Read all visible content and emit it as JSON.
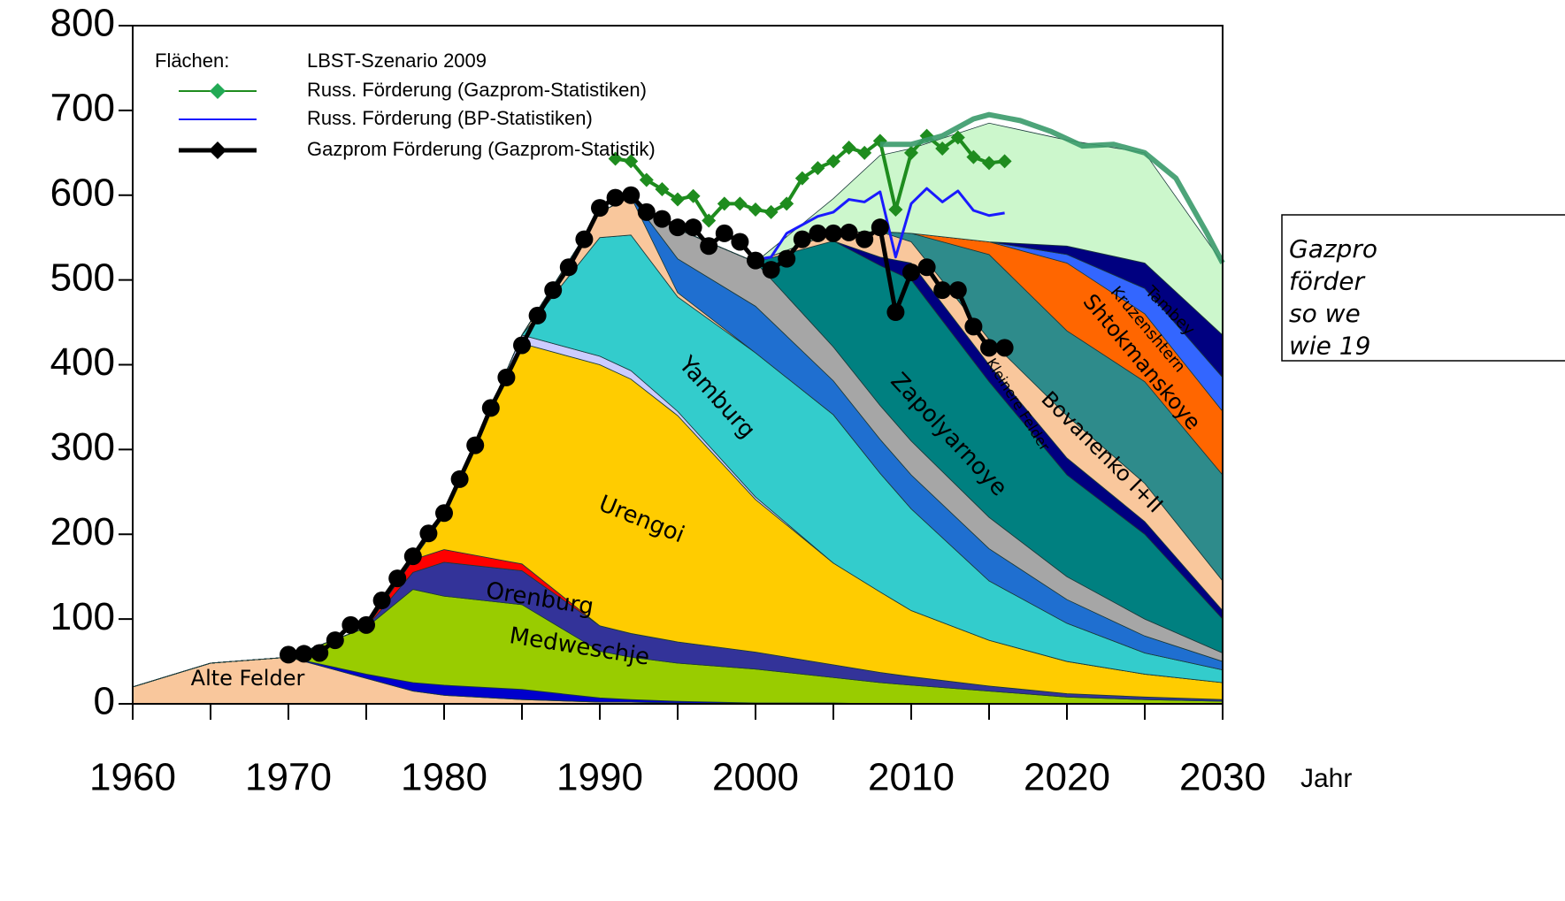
{
  "chart_data": {
    "type": "stacked-area",
    "x_label": "Jahr",
    "xlim": [
      1960,
      2030
    ],
    "ylim": [
      0,
      800
    ],
    "xticks": [
      1960,
      1970,
      1980,
      1990,
      2000,
      2010,
      2020,
      2030
    ],
    "xminor_ticks": [
      1965,
      1975,
      1985,
      1995,
      2005,
      2015,
      2025
    ],
    "yticks": [
      0,
      100,
      200,
      300,
      400,
      500,
      600,
      700,
      800
    ],
    "legend": {
      "areas_label": "Flächen:",
      "areas_name": "LBST-Szenario 2009",
      "corner": "upper left"
    },
    "annotation": [
      "Gazpro",
      "förder",
      " so we",
      "wie 19"
    ],
    "x": [
      1960,
      1965,
      1970,
      1975,
      1978,
      1980,
      1985,
      1990,
      1992,
      1995,
      2000,
      2005,
      2008,
      2010,
      2015,
      2020,
      2025,
      2030
    ],
    "series": [
      {
        "name": "Alte Felder",
        "color": "#f9c79c",
        "values": [
          20,
          48,
          55,
          30,
          15,
          10,
          5,
          2,
          2,
          1,
          0,
          0,
          0,
          0,
          0,
          0,
          0,
          0
        ]
      },
      {
        "color": "#0000cc",
        "values": [
          0,
          0,
          0,
          5,
          10,
          12,
          12,
          5,
          3,
          2,
          1,
          1,
          0,
          0,
          0,
          0,
          0,
          0
        ]
      },
      {
        "name": "Medweschje",
        "color": "#99cc00",
        "values": [
          0,
          0,
          0,
          55,
          110,
          105,
          100,
          55,
          50,
          45,
          40,
          30,
          25,
          22,
          15,
          8,
          5,
          3
        ]
      },
      {
        "name": "Orenburg",
        "color": "#333399",
        "values": [
          0,
          0,
          0,
          0,
          20,
          40,
          40,
          30,
          28,
          25,
          20,
          15,
          12,
          10,
          6,
          4,
          3,
          2
        ]
      },
      {
        "color": "#ff0000",
        "values": [
          0,
          0,
          0,
          0,
          15,
          15,
          8,
          0,
          0,
          0,
          0,
          0,
          0,
          0,
          0,
          0,
          0,
          0
        ]
      },
      {
        "name": "Urengoi",
        "color": "#ffcc00",
        "values": [
          0,
          0,
          0,
          0,
          0,
          40,
          260,
          308,
          300,
          267,
          180,
          120,
          95,
          78,
          54,
          38,
          27,
          20
        ]
      },
      {
        "color": "#ccccff",
        "values": [
          0,
          0,
          0,
          0,
          0,
          0,
          10,
          10,
          10,
          5,
          3,
          0,
          0,
          0,
          0,
          0,
          0,
          0
        ]
      },
      {
        "name": "Yamburg",
        "color": "#33cccc",
        "values": [
          0,
          0,
          0,
          0,
          0,
          0,
          0,
          140,
          160,
          135,
          170,
          175,
          140,
          120,
          70,
          45,
          25,
          15
        ]
      },
      {
        "color": "#f9c79c",
        "values": [
          0,
          0,
          0,
          0,
          0,
          0,
          0,
          30,
          45,
          5,
          0,
          0,
          0,
          0,
          0,
          0,
          0,
          0
        ]
      },
      {
        "color": "#1f6fd0",
        "values": [
          0,
          0,
          0,
          0,
          0,
          0,
          0,
          0,
          0,
          40,
          55,
          40,
          40,
          40,
          38,
          28,
          20,
          10
        ]
      },
      {
        "color": "#a6a6a6",
        "values": [
          0,
          0,
          0,
          0,
          0,
          0,
          0,
          0,
          0,
          35,
          52,
          40,
          40,
          40,
          37,
          27,
          20,
          10
        ]
      },
      {
        "name": "Zapolyarnoye",
        "color": "#008080",
        "values": [
          0,
          0,
          0,
          0,
          0,
          0,
          0,
          0,
          0,
          0,
          0,
          125,
          165,
          190,
          160,
          120,
          100,
          40
        ]
      },
      {
        "color": "#000080",
        "values": [
          0,
          0,
          0,
          0,
          0,
          0,
          0,
          0,
          0,
          0,
          0,
          0,
          10,
          20,
          20,
          20,
          15,
          10
        ]
      },
      {
        "name": "Kleinere Felder",
        "color": "#f9c79c",
        "values": [
          0,
          0,
          0,
          0,
          0,
          0,
          0,
          0,
          0,
          0,
          0,
          10,
          30,
          25,
          30,
          50,
          45,
          35
        ]
      },
      {
        "name": "Bovanenko I+II",
        "color": "#2e8b8b",
        "values": [
          0,
          0,
          0,
          0,
          0,
          0,
          0,
          0,
          0,
          0,
          0,
          0,
          0,
          10,
          100,
          100,
          120,
          125
        ]
      },
      {
        "name": "Shtokmanskoye",
        "color": "#ff6600",
        "values": [
          0,
          0,
          0,
          0,
          0,
          0,
          0,
          0,
          0,
          0,
          0,
          0,
          0,
          0,
          15,
          80,
          80,
          75
        ]
      },
      {
        "name": "Kruzenshtern",
        "color": "#3366ff",
        "values": [
          0,
          0,
          0,
          0,
          0,
          0,
          0,
          0,
          0,
          0,
          0,
          0,
          0,
          0,
          0,
          10,
          30,
          40
        ]
      },
      {
        "name": "Tambey",
        "color": "#000080",
        "values": [
          0,
          0,
          0,
          0,
          0,
          0,
          0,
          0,
          0,
          0,
          0,
          0,
          0,
          0,
          0,
          10,
          30,
          50
        ]
      },
      {
        "color": "#ccf7cc",
        "values": [
          0,
          0,
          0,
          0,
          0,
          0,
          0,
          0,
          0,
          0,
          0,
          40,
          90,
          100,
          140,
          125,
          130,
          85
        ]
      }
    ],
    "lines": [
      {
        "name": "Russ. Förderung (Gazprom-Statistiken)",
        "color": "#1e8c1e",
        "marker": "diamond",
        "x": [
          1991,
          1992,
          1993,
          1994,
          1995,
          1996,
          1997,
          1998,
          1999,
          2000,
          2001,
          2002,
          2003,
          2004,
          2005,
          2006,
          2007,
          2008,
          2009,
          2010,
          2011,
          2012,
          2013,
          2014,
          2015,
          2016
        ],
        "values": [
          643,
          640,
          618,
          607,
          595,
          599,
          570,
          590,
          590,
          583,
          580,
          590,
          620,
          632,
          640,
          656,
          650,
          664,
          583,
          650,
          670,
          655,
          668,
          645,
          638,
          640
        ]
      },
      {
        "name": "Russ. Förderung (BP-Statistiken)",
        "color": "#1a1aff",
        "marker": "none",
        "x": [
          2000,
          2001,
          2002,
          2003,
          2004,
          2005,
          2006,
          2007,
          2008,
          2009,
          2010,
          2011,
          2012,
          2013,
          2014,
          2015,
          2016
        ],
        "values": [
          524,
          527,
          555,
          565,
          575,
          580,
          595,
          592,
          604,
          527,
          590,
          608,
          592,
          605,
          582,
          576,
          579
        ]
      },
      {
        "name": "Gazprom Förderung (Gazprom-Statistik)",
        "color": "#000000",
        "marker": "circle",
        "x": [
          1970,
          1971,
          1972,
          1973,
          1974,
          1975,
          1976,
          1977,
          1978,
          1979,
          1980,
          1981,
          1982,
          1983,
          1984,
          1985,
          1986,
          1987,
          1988,
          1989,
          1990,
          1991,
          1992,
          1993,
          1994,
          1995,
          1996,
          1997,
          1998,
          1999,
          2000,
          2001,
          2002,
          2003,
          2004,
          2005,
          2006,
          2007,
          2008,
          2009,
          2010,
          2011,
          2012,
          2013,
          2014,
          2015,
          2016
        ],
        "values": [
          58,
          59,
          60,
          75,
          93,
          93,
          122,
          148,
          174,
          201,
          225,
          265,
          305,
          349,
          385,
          423,
          458,
          488,
          515,
          548,
          585,
          597,
          600,
          580,
          572,
          562,
          562,
          540,
          555,
          545,
          523,
          512,
          525,
          548,
          555,
          555,
          556,
          548,
          562,
          462,
          509,
          515,
          488,
          488,
          445,
          420,
          420
        ]
      },
      {
        "color": "#3a9a6a",
        "marker": "none",
        "x": [
          2008,
          2010,
          2012,
          2014,
          2015,
          2017,
          2019,
          2021,
          2023,
          2025,
          2027,
          2029,
          2030
        ],
        "values": [
          660,
          660,
          670,
          690,
          695,
          688,
          675,
          658,
          660,
          650,
          620,
          555,
          520
        ]
      }
    ]
  }
}
